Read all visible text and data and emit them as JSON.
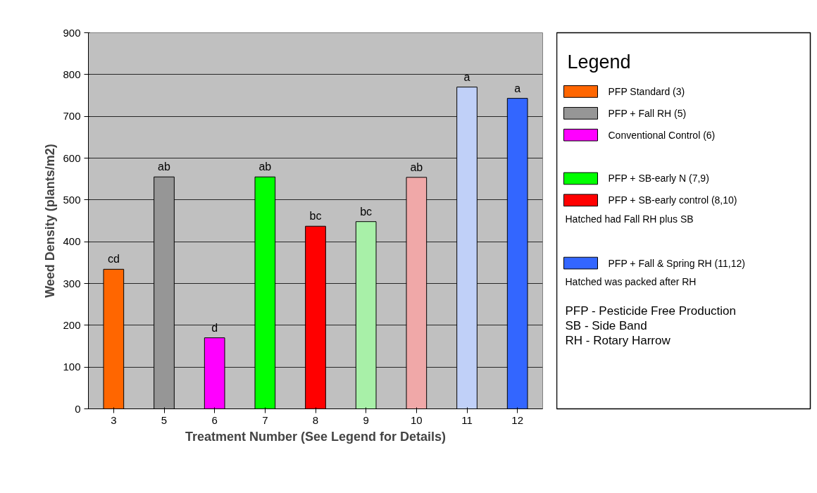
{
  "chart_data": {
    "type": "bar",
    "xlabel": "Treatment Number (See Legend for Details)",
    "ylabel": "Weed Density (plants/m2)",
    "legend_title": "Legend",
    "categories": [
      "3",
      "5",
      "6",
      "7",
      "8",
      "9",
      "10",
      "11",
      "12"
    ],
    "series": [
      {
        "name": "PFP Standard (3)",
        "color": "#ff6600",
        "values": [
          334,
          null,
          null,
          null,
          null,
          null,
          null,
          null,
          null
        ],
        "value_labels": [
          "cd",
          null,
          null,
          null,
          null,
          null,
          null,
          null,
          null
        ]
      },
      {
        "name": "PFP + Fall RH (5)",
        "color": "#969696",
        "values": [
          null,
          555,
          null,
          null,
          null,
          null,
          null,
          null,
          null
        ],
        "value_labels": [
          null,
          "ab",
          null,
          null,
          null,
          null,
          null,
          null,
          null
        ]
      },
      {
        "name": "Conventional Control (6)",
        "color": "#ff00ff",
        "values": [
          null,
          null,
          170,
          null,
          null,
          null,
          null,
          null,
          null
        ],
        "value_labels": [
          null,
          null,
          "d",
          null,
          null,
          null,
          null,
          null,
          null
        ]
      },
      {
        "name": "PFP + SB-early N (7,9)",
        "color": "#00ff00",
        "colors": [
          null,
          null,
          null,
          "#00ff00",
          null,
          "#a8f0a8",
          null,
          null,
          null
        ],
        "values": [
          null,
          null,
          null,
          555,
          null,
          448,
          null,
          null,
          null
        ],
        "value_labels": [
          null,
          null,
          null,
          "ab",
          null,
          "bc",
          null,
          null,
          null
        ]
      },
      {
        "name": "PFP + SB-early control (8,10)",
        "color": "#ff0000",
        "colors": [
          null,
          null,
          null,
          null,
          "#ff0000",
          null,
          "#f0a8a8",
          null,
          null
        ],
        "values": [
          null,
          null,
          null,
          null,
          437,
          null,
          554,
          null,
          null
        ],
        "value_labels": [
          null,
          null,
          null,
          null,
          "bc",
          null,
          "ab",
          null,
          null
        ]
      },
      {
        "name": "PFP + Fall & Spring RH (11,12)",
        "color": "#3366ff",
        "colors": [
          null,
          null,
          null,
          null,
          null,
          null,
          null,
          "#c0d0f8",
          "#3366ff"
        ],
        "values": [
          null,
          null,
          null,
          null,
          null,
          null,
          null,
          770,
          743
        ],
        "value_labels": [
          null,
          null,
          null,
          null,
          null,
          null,
          null,
          "a",
          "a"
        ]
      }
    ],
    "annotations": [
      "Hatched had Fall RH plus SB",
      "Hatched was packed after RH",
      "PFP - Pesticide Free Production",
      "SB - Side Band",
      "RH - Rotary Harrow"
    ],
    "ylim": [
      0,
      900
    ],
    "yticks": [
      0,
      100,
      200,
      300,
      400,
      500,
      600,
      700,
      800,
      900
    ],
    "grid": "y",
    "legend": "right"
  }
}
